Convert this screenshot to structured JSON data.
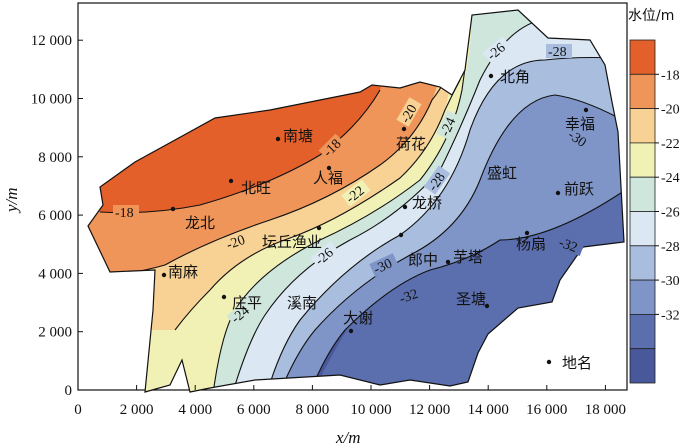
{
  "map": {
    "x_axis": {
      "label": "x/m",
      "ticks": [
        "0",
        "2 000",
        "4 000",
        "6 000",
        "8 000",
        "10 000",
        "12 000",
        "14 000",
        "16 000",
        "18 000"
      ]
    },
    "y_axis": {
      "label": "y/m",
      "ticks": [
        "0",
        "2 000",
        "4 000",
        "6 000",
        "8 000",
        "10 000",
        "12 000"
      ]
    },
    "colorbar": {
      "title": "水位/m",
      "ticks": [
        "-18",
        "-20",
        "-22",
        "-24",
        "-26",
        "-28",
        "-30",
        "-32"
      ],
      "colors": [
        "#e4602b",
        "#f0955a",
        "#f7d294",
        "#f2f1b5",
        "#cfe6dd",
        "#dbe8f3",
        "#a9bedf",
        "#7f95c8",
        "#5b6eae",
        "#48589a"
      ]
    },
    "contour_labels": [
      "-18",
      "-18",
      "-20",
      "-20",
      "-22",
      "-24",
      "-24",
      "-26",
      "-26",
      "-28",
      "-28",
      "-30",
      "-30",
      "-32",
      "-32"
    ],
    "places": [
      "南塘",
      "荷花",
      "人福",
      "北旺",
      "龙北",
      "坛丘渔业",
      "龙桥",
      "郎中",
      "南麻",
      "庄平",
      "溪南",
      "大谢",
      "芋塔",
      "圣塘",
      "杨扇",
      "盛虹",
      "前跃",
      "幸福",
      "北角"
    ],
    "legend": {
      "label": "地名"
    }
  }
}
